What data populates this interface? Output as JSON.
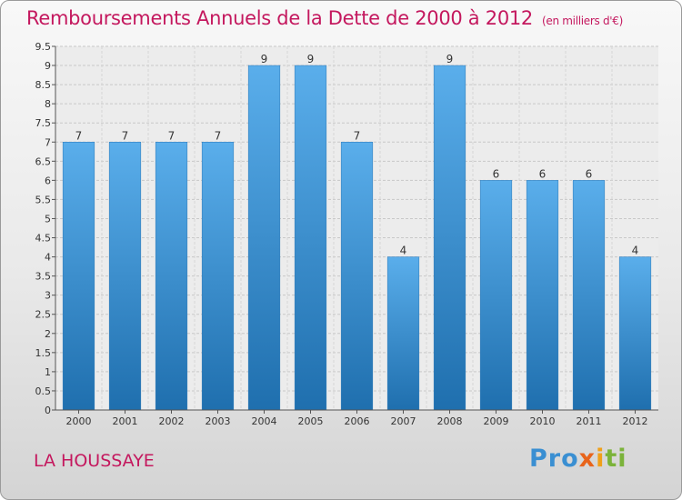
{
  "header": {
    "title": "Remboursements Annuels de la Dette de 2000 à 2012",
    "unit": "(en milliers d'€)"
  },
  "footer": {
    "town": "LA HOUSSAYE",
    "logo": {
      "p1": "Pro",
      "p2": "x",
      "p3": "i",
      "p4": "ti"
    }
  },
  "colors": {
    "title": "#c4185e",
    "bar_top": "#5aaeeb",
    "bar_bottom": "#1f6fae"
  },
  "chart_data": {
    "type": "bar",
    "categories": [
      "2000",
      "2001",
      "2002",
      "2003",
      "2004",
      "2005",
      "2006",
      "2007",
      "2008",
      "2009",
      "2010",
      "2011",
      "2012"
    ],
    "values": [
      7,
      7,
      7,
      7,
      9,
      9,
      7,
      4,
      9,
      6,
      6,
      6,
      4
    ],
    "data_labels": [
      "7",
      "7",
      "7",
      "7",
      "9",
      "9",
      "7",
      "4",
      "9",
      "6",
      "6",
      "6",
      "4"
    ],
    "ylim": [
      0,
      9.5
    ],
    "yticks": [
      0,
      0.5,
      1,
      1.5,
      2,
      2.5,
      3,
      3.5,
      4,
      4.5,
      5,
      5.5,
      6,
      6.5,
      7,
      7.5,
      8,
      8.5,
      9,
      9.5
    ],
    "ytick_labels": [
      "0",
      "0.5",
      "1",
      "1.5",
      "2",
      "2.5",
      "3",
      "3.5",
      "4",
      "4.5",
      "5",
      "5.5",
      "6",
      "6.5",
      "7",
      "7.5",
      "8",
      "8.5",
      "9",
      "9.5"
    ],
    "grid": true
  }
}
